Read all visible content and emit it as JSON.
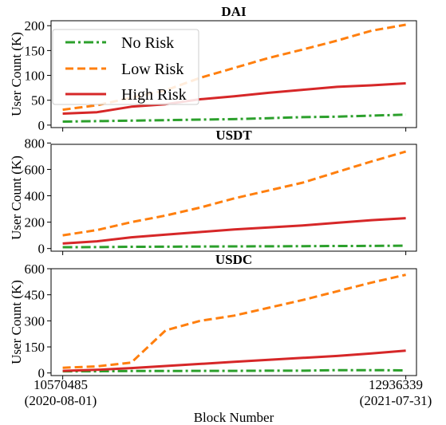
{
  "figure": {
    "xlabel": "Block Number",
    "x_tick_labels": [
      {
        "block": 10570485,
        "label": "10570485",
        "date": "(2020-08-01)"
      },
      {
        "block": 12936339,
        "label": "12936339",
        "date": "(2021-07-31)"
      }
    ]
  },
  "legend": [
    {
      "name": "No Risk",
      "color": "#2ca02c",
      "dash": "dashdot"
    },
    {
      "name": "Low Risk",
      "color": "#ff7f0e",
      "dash": "dashed"
    },
    {
      "name": "High Risk",
      "color": "#d62728",
      "dash": "solid"
    }
  ],
  "chart_data": [
    {
      "type": "line",
      "title": "DAI",
      "ylabel": "User Count (K)",
      "xlim": [
        10490000,
        13010000
      ],
      "ylim": [
        -5,
        210
      ],
      "yticks": [
        0,
        50,
        100,
        150,
        200
      ],
      "grid": false,
      "legend_position": "upper-left",
      "x": [
        10570485,
        10807070,
        11043656,
        11280241,
        11516826,
        11753412,
        11989997,
        12226582,
        12463168,
        12699753,
        12936339
      ],
      "series": [
        {
          "name": "No Risk",
          "color": "#2ca02c",
          "values": [
            7,
            8,
            9,
            10,
            11,
            12,
            14,
            16,
            17,
            19,
            21
          ]
        },
        {
          "name": "Low Risk",
          "color": "#ff7f0e",
          "values": [
            31,
            40,
            55,
            70,
            95,
            115,
            135,
            152,
            170,
            190,
            202
          ]
        },
        {
          "name": "High Risk",
          "color": "#d62728",
          "values": [
            23,
            26,
            37,
            42,
            52,
            58,
            65,
            71,
            77,
            80,
            84
          ]
        }
      ]
    },
    {
      "type": "line",
      "title": "USDT",
      "ylabel": "User Count (K)",
      "xlim": [
        10490000,
        13010000
      ],
      "ylim": [
        -20,
        790
      ],
      "yticks": [
        0,
        200,
        400,
        600,
        800
      ],
      "grid": false,
      "x": [
        10570485,
        10807070,
        11043656,
        11280241,
        11516826,
        11753412,
        11989997,
        12226582,
        12463168,
        12699753,
        12936339
      ],
      "series": [
        {
          "name": "No Risk",
          "color": "#2ca02c",
          "values": [
            10,
            11,
            13,
            14,
            15,
            16,
            17,
            18,
            19,
            20,
            22
          ]
        },
        {
          "name": "Low Risk",
          "color": "#ff7f0e",
          "values": [
            100,
            140,
            200,
            250,
            310,
            380,
            440,
            500,
            580,
            660,
            735
          ]
        },
        {
          "name": "High Risk",
          "color": "#d62728",
          "values": [
            38,
            55,
            85,
            105,
            125,
            145,
            160,
            175,
            195,
            215,
            230
          ]
        }
      ]
    },
    {
      "type": "line",
      "title": "USDC",
      "ylabel": "User Count (K)",
      "xlim": [
        10490000,
        13010000
      ],
      "ylim": [
        -15,
        600
      ],
      "yticks": [
        0,
        150,
        300,
        450,
        600
      ],
      "grid": false,
      "x": [
        10570485,
        10807070,
        11043656,
        11280241,
        11516826,
        11753412,
        11989997,
        12226582,
        12463168,
        12699753,
        12936339
      ],
      "series": [
        {
          "name": "No Risk",
          "color": "#2ca02c",
          "values": [
            10,
            10,
            11,
            11,
            12,
            12,
            13,
            13,
            16,
            16,
            15
          ]
        },
        {
          "name": "Low Risk",
          "color": "#ff7f0e",
          "values": [
            30,
            38,
            60,
            245,
            300,
            330,
            375,
            420,
            470,
            520,
            565
          ]
        },
        {
          "name": "High Risk",
          "color": "#d62728",
          "values": [
            12,
            18,
            28,
            40,
            52,
            64,
            76,
            87,
            98,
            112,
            128
          ]
        }
      ]
    }
  ]
}
